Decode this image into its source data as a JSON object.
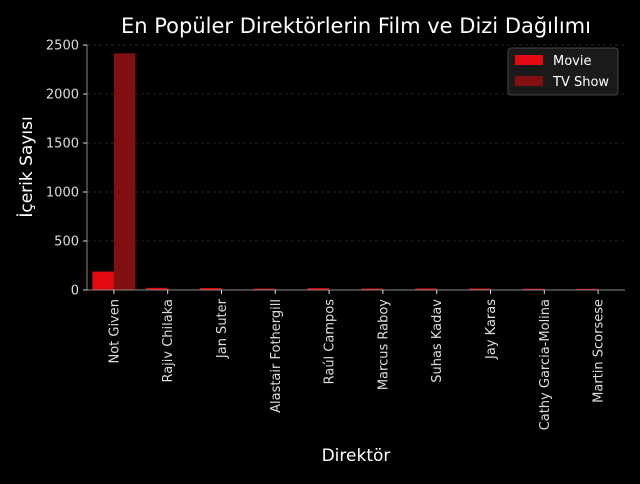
{
  "chart_data": {
    "type": "bar",
    "title": "En Popüler Direktörlerin Film ve Dizi Dağılımı",
    "xlabel": "Direktör",
    "ylabel": "İçerik Sayısı",
    "categories": [
      "Not Given",
      "Rajiv Chilaka",
      "Jan Suter",
      "Alastair Fothergill",
      "Raúl Campos",
      "Marcus Raboy",
      "Suhas Kadav",
      "Jay Karas",
      "Cathy Garcia-Molina",
      "Martin Scorsese"
    ],
    "series": [
      {
        "name": "Movie",
        "color": "#e50914",
        "values": [
          188,
          22,
          21,
          14,
          19,
          15,
          16,
          15,
          13,
          12
        ]
      },
      {
        "name": "TV Show",
        "color": "#831010",
        "values": [
          2415,
          0,
          0,
          3,
          0,
          1,
          0,
          0,
          0,
          0
        ]
      }
    ],
    "ylim": [
      0,
      2500
    ],
    "yticks": [
      0,
      500,
      1000,
      1500,
      2000,
      2500
    ],
    "grid": "y-dashed",
    "legend_position": "top-right",
    "colors": {
      "background": "#000000",
      "text": "#ffffff",
      "tick_text": "#dddddd",
      "grid": "#333333"
    }
  }
}
